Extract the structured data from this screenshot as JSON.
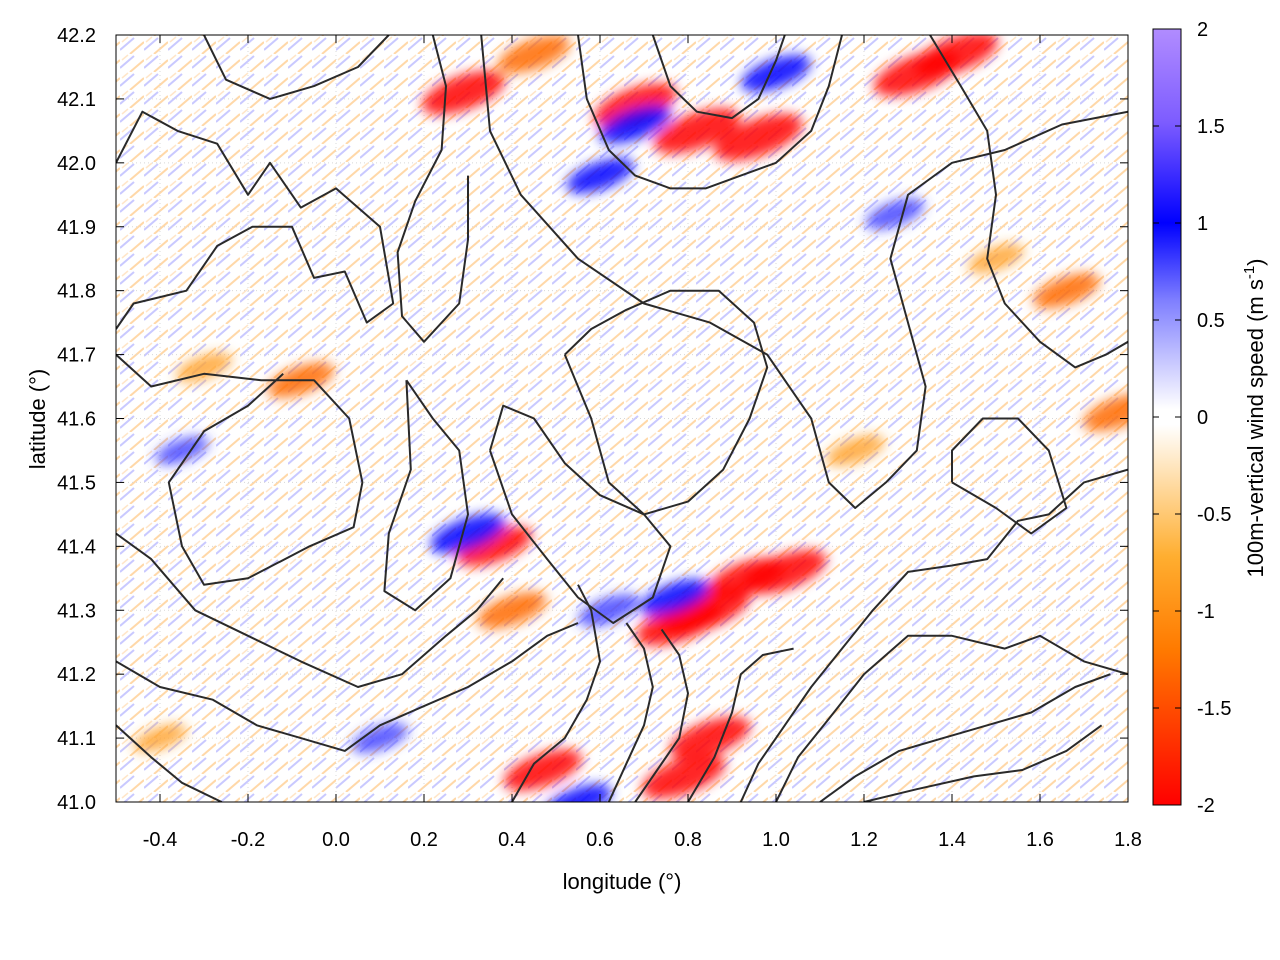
{
  "chart_data": {
    "type": "heatmap",
    "title": "",
    "xlabel": "longitude (°)",
    "ylabel": "latitude (°)",
    "xlim": [
      -0.5,
      1.8
    ],
    "ylim": [
      41.0,
      42.2
    ],
    "x_ticks": [
      -0.4,
      -0.2,
      0.0,
      0.2,
      0.4,
      0.6,
      0.8,
      1.0,
      1.2,
      1.4,
      1.6,
      1.8
    ],
    "x_tick_labels": [
      "-0.4",
      "-0.2",
      "0.0",
      "0.2",
      "0.4",
      "0.6",
      "0.8",
      "1.0",
      "1.2",
      "1.4",
      "1.6",
      "1.8"
    ],
    "y_ticks": [
      41.0,
      41.1,
      41.2,
      41.3,
      41.4,
      41.5,
      41.6,
      41.7,
      41.8,
      41.9,
      42.0,
      42.1,
      42.2
    ],
    "y_tick_labels": [
      "41.0",
      "41.1",
      "41.2",
      "41.3",
      "41.4",
      "41.5",
      "41.6",
      "41.7",
      "41.8",
      "41.9",
      "42.0",
      "42.1",
      "42.2"
    ],
    "grid": true,
    "colorbar": {
      "label": "100m-vertical wind speed (m s",
      "label_superscript": "-1",
      "label_close": ")",
      "range": [
        -2,
        2
      ],
      "ticks": [
        2,
        1.5,
        1,
        0.5,
        0,
        -0.5,
        -1,
        -1.5,
        -2
      ],
      "tick_labels": [
        "2",
        "1.5",
        "1",
        "0.5",
        "0",
        "-0.5",
        "-1",
        "-1.5",
        "-2"
      ],
      "colormap": [
        "#ff0000",
        "#ff7a00",
        "#ffa500",
        "#ffffff",
        "#ffffff",
        "#6f6fff",
        "#0000ff",
        "#9f6fff",
        "#b18cff"
      ]
    },
    "hotspots": [
      {
        "lon": 0.82,
        "lat": 42.05,
        "value": -1.9
      },
      {
        "lon": 0.96,
        "lat": 42.04,
        "value": -2.0
      },
      {
        "lon": 0.68,
        "lat": 42.09,
        "value": -1.8
      },
      {
        "lon": 0.29,
        "lat": 42.11,
        "value": -1.8
      },
      {
        "lon": 1.32,
        "lat": 42.14,
        "value": -1.9
      },
      {
        "lon": 1.41,
        "lat": 42.17,
        "value": -1.8
      },
      {
        "lon": 0.45,
        "lat": 42.17,
        "value": -1.4
      },
      {
        "lon": 0.68,
        "lat": 42.06,
        "value": 1.4
      },
      {
        "lon": 0.6,
        "lat": 41.98,
        "value": 1.2
      },
      {
        "lon": 1.0,
        "lat": 42.14,
        "value": 1.3
      },
      {
        "lon": 0.84,
        "lat": 41.3,
        "value": -2.0
      },
      {
        "lon": 0.78,
        "lat": 41.28,
        "value": -1.9
      },
      {
        "lon": 1.02,
        "lat": 41.36,
        "value": -1.8
      },
      {
        "lon": 0.93,
        "lat": 41.35,
        "value": -1.6
      },
      {
        "lon": 0.36,
        "lat": 41.4,
        "value": -1.5
      },
      {
        "lon": 0.4,
        "lat": 41.3,
        "value": -1.3
      },
      {
        "lon": 0.3,
        "lat": 41.42,
        "value": 1.5
      },
      {
        "lon": 0.77,
        "lat": 41.32,
        "value": 1.3
      },
      {
        "lon": 0.62,
        "lat": 41.3,
        "value": 1.0
      },
      {
        "lon": 0.47,
        "lat": 41.05,
        "value": -1.6
      },
      {
        "lon": 0.79,
        "lat": 41.04,
        "value": -1.8
      },
      {
        "lon": 0.85,
        "lat": 41.1,
        "value": -1.7
      },
      {
        "lon": 0.55,
        "lat": 41.0,
        "value": 1.2
      },
      {
        "lon": -0.08,
        "lat": 41.66,
        "value": -1.2
      },
      {
        "lon": -0.3,
        "lat": 41.68,
        "value": -0.8
      },
      {
        "lon": 1.66,
        "lat": 41.8,
        "value": -1.2
      },
      {
        "lon": 1.5,
        "lat": 41.85,
        "value": -0.8
      },
      {
        "lon": 1.78,
        "lat": 41.61,
        "value": -1.4
      },
      {
        "lon": 0.1,
        "lat": 41.1,
        "value": 0.8
      },
      {
        "lon": -0.35,
        "lat": 41.55,
        "value": 0.7
      },
      {
        "lon": 1.27,
        "lat": 41.92,
        "value": 0.9
      },
      {
        "lon": 1.18,
        "lat": 41.55,
        "value": -0.9
      },
      {
        "lon": -0.4,
        "lat": 41.1,
        "value": -0.7
      }
    ],
    "contours": [
      [
        [
          -0.5,
          42.0
        ],
        [
          -0.44,
          42.08
        ],
        [
          -0.36,
          42.05
        ],
        [
          -0.27,
          42.03
        ],
        [
          -0.2,
          41.95
        ],
        [
          -0.15,
          42.0
        ],
        [
          -0.08,
          41.93
        ],
        [
          0.0,
          41.96
        ],
        [
          0.1,
          41.9
        ],
        [
          0.13,
          41.78
        ],
        [
          0.07,
          41.75
        ],
        [
          0.02,
          41.83
        ],
        [
          -0.05,
          41.82
        ],
        [
          -0.1,
          41.9
        ],
        [
          -0.19,
          41.9
        ],
        [
          -0.27,
          41.87
        ],
        [
          -0.34,
          41.8
        ],
        [
          -0.46,
          41.78
        ],
        [
          -0.5,
          41.74
        ]
      ],
      [
        [
          -0.5,
          41.7
        ],
        [
          -0.42,
          41.65
        ],
        [
          -0.3,
          41.67
        ],
        [
          -0.17,
          41.66
        ],
        [
          -0.05,
          41.66
        ],
        [
          0.03,
          41.6
        ],
        [
          0.06,
          41.5
        ],
        [
          0.04,
          41.43
        ],
        [
          -0.06,
          41.4
        ],
        [
          -0.2,
          41.35
        ],
        [
          -0.3,
          41.34
        ],
        [
          -0.35,
          41.4
        ],
        [
          -0.38,
          41.5
        ],
        [
          -0.3,
          41.58
        ],
        [
          -0.2,
          41.62
        ],
        [
          -0.12,
          41.67
        ]
      ],
      [
        [
          0.16,
          41.66
        ],
        [
          0.22,
          41.6
        ],
        [
          0.28,
          41.55
        ],
        [
          0.3,
          41.45
        ],
        [
          0.26,
          41.35
        ],
        [
          0.18,
          41.3
        ],
        [
          0.11,
          41.33
        ],
        [
          0.12,
          41.42
        ],
        [
          0.17,
          41.52
        ],
        [
          0.16,
          41.66
        ]
      ],
      [
        [
          0.33,
          42.2
        ],
        [
          0.35,
          42.05
        ],
        [
          0.42,
          41.95
        ],
        [
          0.55,
          41.85
        ],
        [
          0.7,
          41.78
        ],
        [
          0.85,
          41.75
        ],
        [
          0.98,
          41.7
        ],
        [
          1.08,
          41.6
        ],
        [
          1.12,
          41.5
        ],
        [
          1.18,
          41.46
        ],
        [
          1.25,
          41.5
        ],
        [
          1.32,
          41.55
        ],
        [
          1.34,
          41.65
        ],
        [
          1.3,
          41.75
        ],
        [
          1.26,
          41.85
        ],
        [
          1.3,
          41.95
        ],
        [
          1.4,
          42.0
        ],
        [
          1.52,
          42.02
        ],
        [
          1.65,
          42.06
        ],
        [
          1.8,
          42.08
        ]
      ],
      [
        [
          0.52,
          41.7
        ],
        [
          0.58,
          41.6
        ],
        [
          0.62,
          41.5
        ],
        [
          0.7,
          41.45
        ],
        [
          0.8,
          41.47
        ],
        [
          0.88,
          41.52
        ],
        [
          0.94,
          41.6
        ],
        [
          0.98,
          41.68
        ],
        [
          0.95,
          41.75
        ],
        [
          0.87,
          41.8
        ],
        [
          0.76,
          41.8
        ],
        [
          0.66,
          41.77
        ],
        [
          0.58,
          41.74
        ],
        [
          0.52,
          41.7
        ]
      ],
      [
        [
          0.35,
          41.55
        ],
        [
          0.4,
          41.45
        ],
        [
          0.48,
          41.38
        ],
        [
          0.55,
          41.32
        ],
        [
          0.63,
          41.28
        ],
        [
          0.72,
          41.32
        ],
        [
          0.76,
          41.4
        ],
        [
          0.7,
          41.45
        ],
        [
          0.6,
          41.48
        ],
        [
          0.52,
          41.53
        ],
        [
          0.45,
          41.6
        ],
        [
          0.38,
          41.62
        ],
        [
          0.35,
          41.55
        ]
      ],
      [
        [
          -0.5,
          41.42
        ],
        [
          -0.42,
          41.38
        ],
        [
          -0.32,
          41.3
        ],
        [
          -0.2,
          41.26
        ],
        [
          -0.08,
          41.22
        ],
        [
          0.05,
          41.18
        ],
        [
          0.15,
          41.2
        ],
        [
          0.25,
          41.26
        ],
        [
          0.32,
          41.3
        ],
        [
          0.38,
          41.35
        ]
      ],
      [
        [
          -0.5,
          41.22
        ],
        [
          -0.4,
          41.18
        ],
        [
          -0.28,
          41.16
        ],
        [
          -0.18,
          41.12
        ],
        [
          -0.08,
          41.1
        ],
        [
          0.02,
          41.08
        ],
        [
          0.1,
          41.12
        ],
        [
          0.2,
          41.15
        ],
        [
          0.3,
          41.18
        ],
        [
          0.4,
          41.22
        ],
        [
          0.48,
          41.26
        ],
        [
          0.55,
          41.28
        ]
      ],
      [
        [
          -0.5,
          41.12
        ],
        [
          -0.42,
          41.07
        ],
        [
          -0.35,
          41.03
        ],
        [
          -0.26,
          41.0
        ]
      ],
      [
        [
          0.4,
          41.0
        ],
        [
          0.45,
          41.06
        ],
        [
          0.52,
          41.1
        ],
        [
          0.57,
          41.16
        ],
        [
          0.6,
          41.22
        ],
        [
          0.58,
          41.3
        ],
        [
          0.55,
          41.34
        ]
      ],
      [
        [
          0.62,
          41.0
        ],
        [
          0.66,
          41.06
        ],
        [
          0.7,
          41.12
        ],
        [
          0.72,
          41.18
        ],
        [
          0.7,
          41.24
        ],
        [
          0.66,
          41.28
        ]
      ],
      [
        [
          0.68,
          41.0
        ],
        [
          0.73,
          41.05
        ],
        [
          0.78,
          41.1
        ],
        [
          0.8,
          41.17
        ],
        [
          0.78,
          41.23
        ],
        [
          0.74,
          41.27
        ]
      ],
      [
        [
          0.8,
          41.0
        ],
        [
          0.86,
          41.07
        ],
        [
          0.9,
          41.14
        ],
        [
          0.92,
          41.2
        ],
        [
          0.97,
          41.23
        ],
        [
          1.04,
          41.24
        ]
      ],
      [
        [
          0.92,
          41.0
        ],
        [
          0.96,
          41.06
        ],
        [
          1.02,
          41.12
        ],
        [
          1.08,
          41.18
        ],
        [
          1.15,
          41.24
        ],
        [
          1.22,
          41.3
        ],
        [
          1.3,
          41.36
        ],
        [
          1.4,
          41.37
        ],
        [
          1.48,
          41.38
        ],
        [
          1.55,
          41.44
        ],
        [
          1.62,
          41.45
        ],
        [
          1.7,
          41.5
        ],
        [
          1.8,
          41.52
        ]
      ],
      [
        [
          1.0,
          41.0
        ],
        [
          1.05,
          41.07
        ],
        [
          1.12,
          41.13
        ],
        [
          1.2,
          41.2
        ],
        [
          1.3,
          41.26
        ],
        [
          1.4,
          41.26
        ],
        [
          1.52,
          41.24
        ],
        [
          1.6,
          41.26
        ],
        [
          1.7,
          41.22
        ],
        [
          1.8,
          41.2
        ]
      ],
      [
        [
          1.1,
          41.0
        ],
        [
          1.18,
          41.04
        ],
        [
          1.28,
          41.08
        ],
        [
          1.38,
          41.1
        ],
        [
          1.48,
          41.12
        ],
        [
          1.58,
          41.14
        ],
        [
          1.68,
          41.18
        ],
        [
          1.76,
          41.2
        ]
      ],
      [
        [
          1.2,
          41.0
        ],
        [
          1.32,
          41.02
        ],
        [
          1.45,
          41.04
        ],
        [
          1.56,
          41.05
        ],
        [
          1.66,
          41.08
        ],
        [
          1.74,
          41.12
        ]
      ],
      [
        [
          1.35,
          42.2
        ],
        [
          1.42,
          42.12
        ],
        [
          1.48,
          42.05
        ],
        [
          1.5,
          41.95
        ],
        [
          1.48,
          41.85
        ],
        [
          1.52,
          41.78
        ],
        [
          1.6,
          41.72
        ],
        [
          1.68,
          41.68
        ],
        [
          1.75,
          41.7
        ],
        [
          1.8,
          41.72
        ]
      ],
      [
        [
          1.4,
          41.5
        ],
        [
          1.5,
          41.46
        ],
        [
          1.58,
          41.42
        ],
        [
          1.66,
          41.46
        ],
        [
          1.62,
          41.55
        ],
        [
          1.55,
          41.6
        ],
        [
          1.47,
          41.6
        ],
        [
          1.4,
          41.55
        ],
        [
          1.4,
          41.5
        ]
      ],
      [
        [
          0.55,
          42.2
        ],
        [
          0.57,
          42.1
        ],
        [
          0.62,
          42.02
        ],
        [
          0.68,
          41.98
        ],
        [
          0.76,
          41.96
        ],
        [
          0.84,
          41.96
        ],
        [
          0.92,
          41.98
        ],
        [
          1.0,
          42.0
        ],
        [
          1.08,
          42.05
        ],
        [
          1.12,
          42.12
        ],
        [
          1.15,
          42.2
        ]
      ],
      [
        [
          0.72,
          42.2
        ],
        [
          0.76,
          42.12
        ],
        [
          0.82,
          42.08
        ],
        [
          0.9,
          42.07
        ],
        [
          0.96,
          42.1
        ],
        [
          1.0,
          42.16
        ],
        [
          1.02,
          42.2
        ]
      ],
      [
        [
          0.22,
          42.2
        ],
        [
          0.25,
          42.12
        ],
        [
          0.24,
          42.02
        ],
        [
          0.18,
          41.94
        ],
        [
          0.14,
          41.86
        ],
        [
          0.15,
          41.76
        ],
        [
          0.2,
          41.72
        ],
        [
          0.28,
          41.78
        ],
        [
          0.3,
          41.88
        ],
        [
          0.3,
          41.98
        ]
      ],
      [
        [
          -0.3,
          42.2
        ],
        [
          -0.25,
          42.13
        ],
        [
          -0.15,
          42.1
        ],
        [
          -0.05,
          42.12
        ],
        [
          0.05,
          42.15
        ],
        [
          0.12,
          42.2
        ]
      ]
    ]
  }
}
